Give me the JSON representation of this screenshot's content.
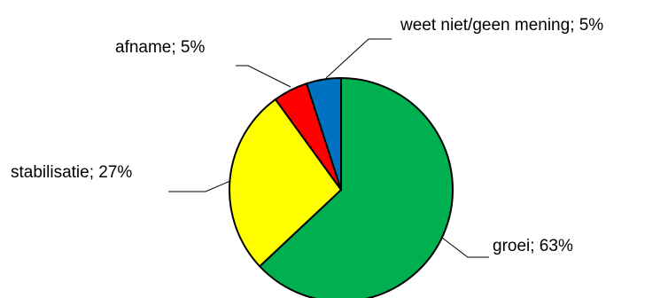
{
  "chart_data": {
    "type": "pie",
    "title": "",
    "slices": [
      {
        "name": "groei",
        "value": 63,
        "label": "groei; 63%",
        "color": "#00b050"
      },
      {
        "name": "stabilisatie",
        "value": 27,
        "label": "stabilisatie; 27%",
        "color": "#ffff00"
      },
      {
        "name": "afname",
        "value": 5,
        "label": "afname; 5%",
        "color": "#ff0000"
      },
      {
        "name": "weet niet/geen mening",
        "value": 5,
        "label": "weet niet/geen mening; 5%",
        "color": "#0070c0"
      }
    ],
    "start": "12 o'clock",
    "direction": "clockwise",
    "legend": "none (category labels with leader lines)"
  }
}
